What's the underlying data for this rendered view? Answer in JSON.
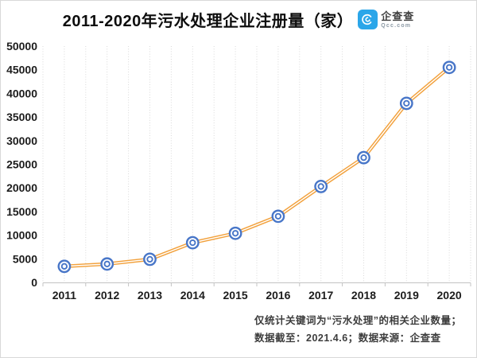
{
  "header": {
    "title": "2011-2020年污水处理企业注册量（家）",
    "logo": {
      "name": "企查查",
      "domain": "Qcc.com",
      "brand_color": "#2BA6E9"
    }
  },
  "chart_data": {
    "type": "line",
    "title": "2011-2020年污水处理企业注册量（家）",
    "categories": [
      "2011",
      "2012",
      "2013",
      "2014",
      "2015",
      "2016",
      "2017",
      "2018",
      "2019",
      "2020"
    ],
    "values": [
      3400,
      3900,
      4900,
      8400,
      10400,
      14000,
      20300,
      26400,
      37900,
      45500
    ],
    "xlabel": "",
    "ylabel": "",
    "ylim": [
      0,
      50000
    ],
    "ytick_interval": 5000,
    "y_tick_labels": [
      "0",
      "5000",
      "10000",
      "15000",
      "20000",
      "25000",
      "30000",
      "35000",
      "40000",
      "45000",
      "50000"
    ],
    "grid": "vertical-dotted-only",
    "legend": "none",
    "line_color": "#F2A13C",
    "marker_color": "#4876C8",
    "marker_style": "double-ring-circle"
  },
  "footer": {
    "line1": "仅统计关键词为“污水处理”的相关企业数量；",
    "line2": "数据截至：2021.4.6；数据来源：企查查"
  }
}
